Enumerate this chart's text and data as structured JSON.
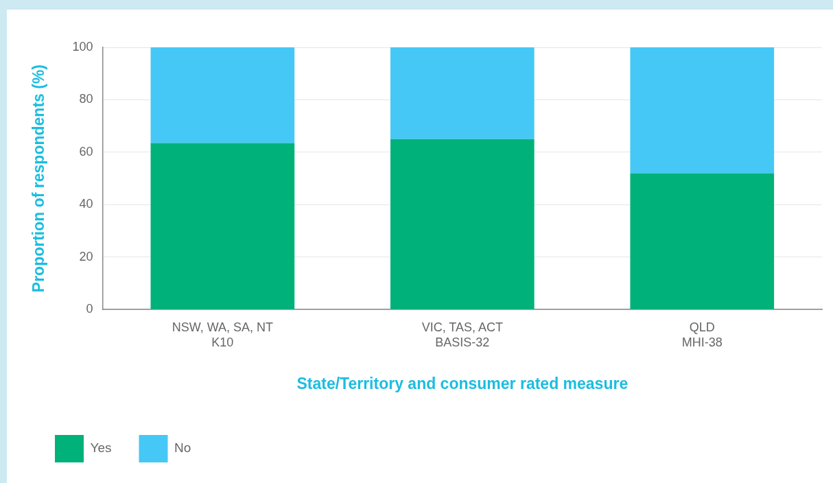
{
  "chart_data": {
    "type": "bar",
    "stacked": true,
    "xlabel": "State/Territory and consumer rated measure",
    "ylabel": "Proportion of respondents (%)",
    "categories": [
      "NSW, WA, SA, NT\nK10",
      "VIC, TAS, ACT\nBASIS-32",
      "QLD\nMHI-38"
    ],
    "series": [
      {
        "name": "Yes",
        "color": "#00b27a",
        "values": [
          63.5,
          65,
          52
        ]
      },
      {
        "name": "No",
        "color": "#45c8f5",
        "values": [
          36.5,
          35,
          48
        ]
      }
    ],
    "ylim": [
      0,
      100
    ],
    "yticks": [
      0,
      20,
      40,
      60,
      80,
      100
    ],
    "grid": "y",
    "legend": "bottom left"
  }
}
